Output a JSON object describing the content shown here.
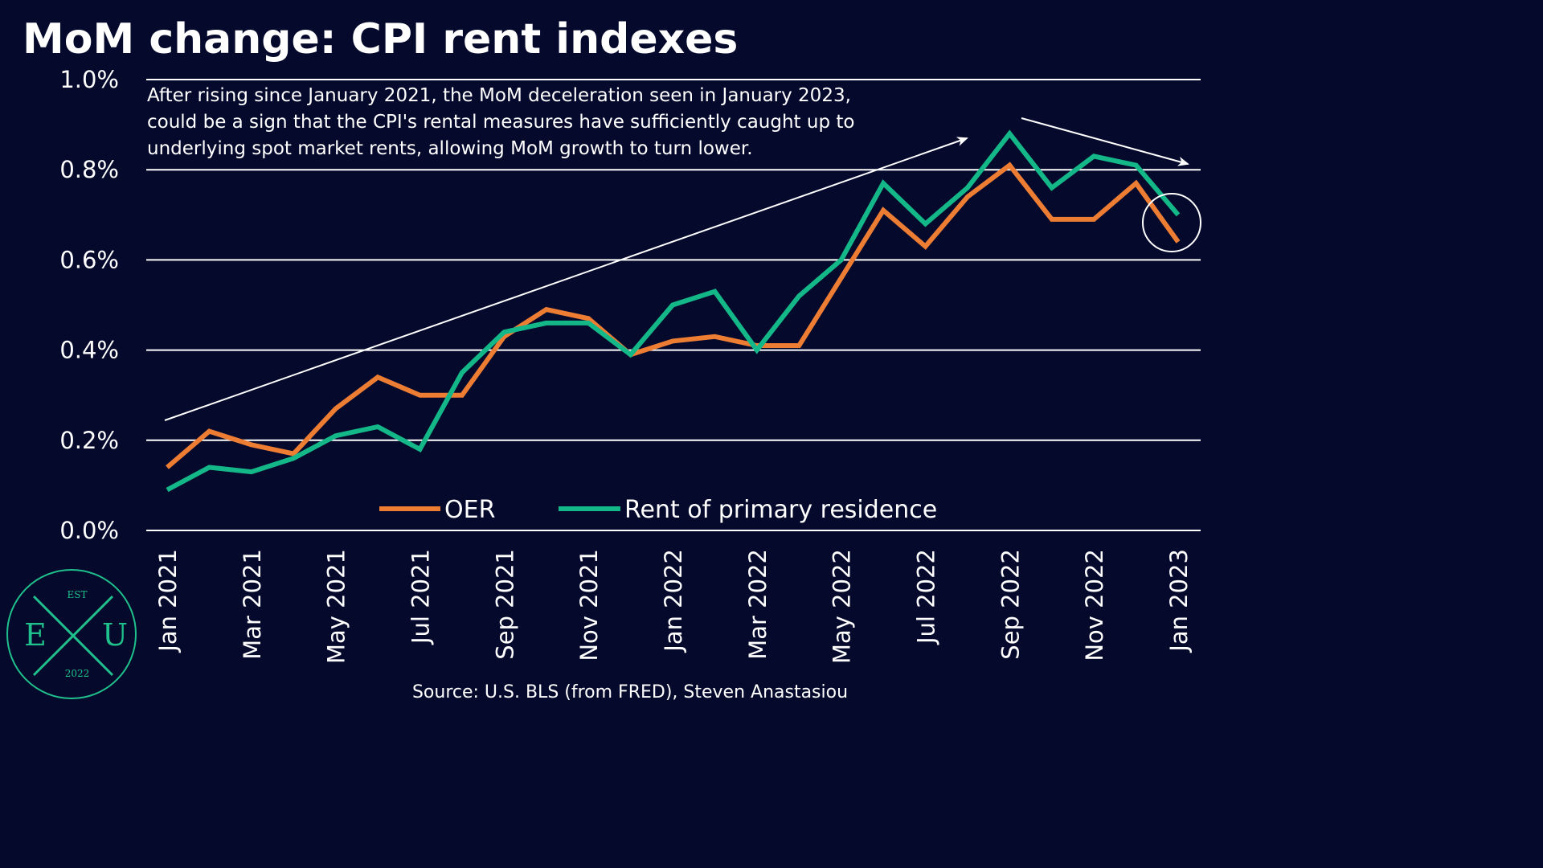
{
  "title": "MoM change: CPI rent indexes",
  "annotation": [
    "After rising since January 2021, the MoM deceleration seen in January 2023,",
    "could be a sign that the CPI's rental measures have sufficiently caught up to",
    "underlying spot market rents, allowing MoM growth to turn lower."
  ],
  "source": "Source: U.S. BLS (from FRED), Steven Anastasiou",
  "logo": {
    "top": "EST",
    "left": "E",
    "right": "U",
    "bottom": "2022"
  },
  "colors": {
    "background": "#050a2d",
    "oer": "#ee7d34",
    "rent": "#14b888",
    "grid": "#ffffff",
    "logo": "#1fc08b"
  },
  "chart_data": {
    "type": "line",
    "x": [
      "Jan 2021",
      "Feb 2021",
      "Mar 2021",
      "Apr 2021",
      "May 2021",
      "Jun 2021",
      "Jul 2021",
      "Aug 2021",
      "Sep 2021",
      "Oct 2021",
      "Nov 2021",
      "Dec 2021",
      "Jan 2022",
      "Feb 2022",
      "Mar 2022",
      "Apr 2022",
      "May 2022",
      "Jun 2022",
      "Jul 2022",
      "Aug 2022",
      "Sep 2022",
      "Oct 2022",
      "Nov 2022",
      "Dec 2022",
      "Jan 2023"
    ],
    "x_tick_labels": [
      "Jan 2021",
      "Mar 2021",
      "May 2021",
      "Jul 2021",
      "Sep 2021",
      "Nov 2021",
      "Jan 2022",
      "Mar 2022",
      "May 2022",
      "Jul 2022",
      "Sep 2022",
      "Nov 2022",
      "Jan 2023"
    ],
    "y_tick_labels": [
      "0.0%",
      "0.2%",
      "0.4%",
      "0.6%",
      "0.8%",
      "1.0%"
    ],
    "ylim": [
      0,
      1.0
    ],
    "y_unit": "%",
    "series": [
      {
        "name": "OER",
        "color": "#ee7d34",
        "values": [
          0.14,
          0.22,
          0.19,
          0.17,
          0.27,
          0.34,
          0.3,
          0.3,
          0.43,
          0.49,
          0.47,
          0.39,
          0.42,
          0.43,
          0.41,
          0.41,
          0.56,
          0.71,
          0.63,
          0.74,
          0.81,
          0.69,
          0.69,
          0.77,
          0.64
        ]
      },
      {
        "name": "Rent of primary residence",
        "color": "#14b888",
        "values": [
          0.09,
          0.14,
          0.13,
          0.16,
          0.21,
          0.23,
          0.18,
          0.35,
          0.44,
          0.46,
          0.46,
          0.39,
          0.5,
          0.53,
          0.4,
          0.52,
          0.6,
          0.77,
          0.68,
          0.76,
          0.88,
          0.76,
          0.83,
          0.81,
          0.7
        ]
      }
    ],
    "legend": "bottom-center",
    "grid": "horizontal"
  }
}
